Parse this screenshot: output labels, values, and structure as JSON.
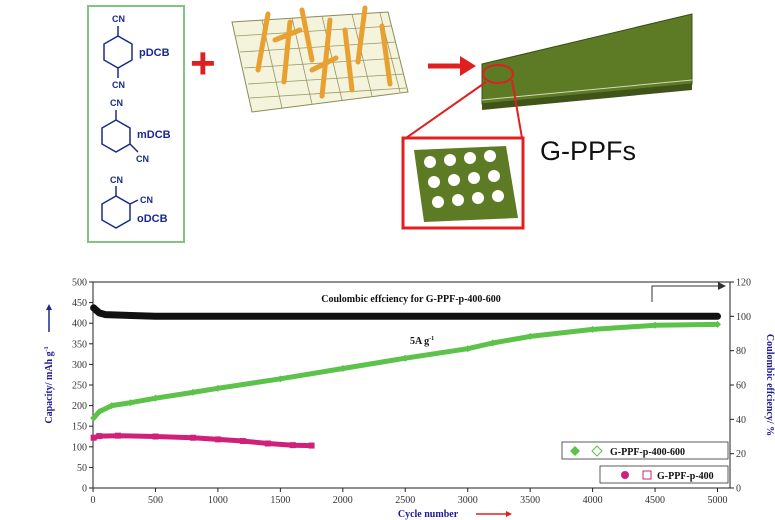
{
  "scheme": {
    "molecules": [
      "pDCB",
      "mDCB",
      "oDCB"
    ],
    "cn_label": "CN",
    "plus_sign": "+",
    "product_label": "G-PPFs",
    "colors": {
      "bond": "#1a2a8a",
      "box_border": "#7fc47f",
      "plus": "#e02020",
      "arrow": "#e02020",
      "sheet": "#5d7a24",
      "fiber": "#e8a030"
    }
  },
  "chart_data": {
    "type": "scatter",
    "title": "Coulombic effciency for G-PPF-p-400-600",
    "annotation": "5A g",
    "annotation_sup": "-1",
    "xlabel": "Cycle number",
    "ylabel_left": "Capacity/ mAh g",
    "ylabel_left_sup": "-1",
    "ylabel_right": "Coulombic effciency/ %",
    "xlim": [
      0,
      5100
    ],
    "ylim_left": [
      0,
      500
    ],
    "ylim_right": [
      0,
      120
    ],
    "x_ticks": [
      "0",
      "500",
      "1000",
      "1500",
      "2000",
      "2500",
      "3000",
      "3500",
      "4000",
      "4500",
      "5000"
    ],
    "y_left_ticks": [
      "0",
      "50",
      "100",
      "150",
      "200",
      "250",
      "300",
      "350",
      "400",
      "450",
      "500"
    ],
    "y_right_ticks": [
      "0",
      "20",
      "40",
      "60",
      "80",
      "100",
      "120"
    ],
    "series": [
      {
        "name": "G-PPF-p-400-600",
        "axis": "left",
        "color": "#5cc24a",
        "marker": "diamond",
        "x": [
          5,
          50,
          150,
          300,
          500,
          800,
          1000,
          1500,
          2000,
          2500,
          3000,
          3200,
          3500,
          4000,
          4500,
          5000
        ],
        "y": [
          170,
          185,
          200,
          207,
          218,
          232,
          242,
          265,
          290,
          315,
          338,
          352,
          368,
          385,
          395,
          397
        ]
      },
      {
        "name": "G-PPF-p-400",
        "axis": "left",
        "color": "#d0207a",
        "marker": "square",
        "x": [
          5,
          50,
          200,
          500,
          800,
          1000,
          1200,
          1400,
          1600,
          1750
        ],
        "y": [
          122,
          126,
          127,
          125,
          122,
          118,
          114,
          108,
          104,
          103
        ]
      },
      {
        "name": "Coulombic efficiency",
        "axis": "right",
        "color": "#111111",
        "marker": "circle",
        "x": [
          5,
          50,
          100,
          500,
          1000,
          2000,
          3000,
          4000,
          5000
        ],
        "y": [
          105,
          102,
          101,
          100,
          100,
          100,
          100,
          100,
          100
        ]
      }
    ],
    "legend": {
      "placement": "bottom-right",
      "entries": [
        "G-PPF-p-400-600",
        "G-PPF-p-400"
      ]
    },
    "grid": false
  }
}
